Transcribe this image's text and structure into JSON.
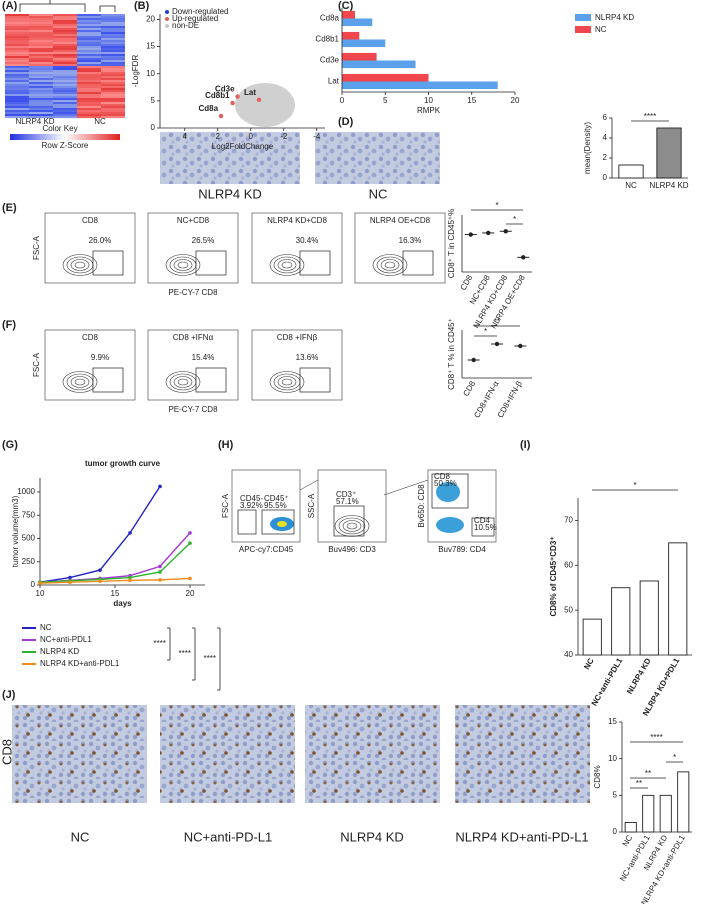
{
  "chart_data": [
    {
      "type": "scatter",
      "xlabel": "Log2FoldChange",
      "ylabel": "-LogFDR",
      "xlim": [
        5.5,
        -4.5
      ],
      "ylim": [
        0,
        21
      ],
      "xticks": [
        4,
        2,
        0,
        -2,
        -4
      ],
      "yticks": [
        0,
        5,
        10,
        15,
        20
      ],
      "labels": [
        "Cd8a",
        "Cd8b1",
        "Cd3e",
        "Lat"
      ],
      "x": [
        1.8,
        1.1,
        0.8,
        -0.5
      ],
      "y": [
        2.2,
        4.6,
        5.8,
        5.2
      ],
      "color": "#e0605a",
      "legend": [
        {
          "name": "Down-regulated",
          "color": "#1f3fd6"
        },
        {
          "name": "Up-regulated",
          "color": "#e0605a"
        },
        {
          "name": "non-DE",
          "color": "#c8c8c8"
        }
      ]
    },
    {
      "type": "hbar",
      "xlabel": "RMPK",
      "categories": [
        "Cd8a",
        "Cd8b1",
        "Cd3e",
        "Lat"
      ],
      "xlim": [
        0,
        20
      ],
      "xticks": [
        0,
        5,
        10,
        15,
        20
      ],
      "series": [
        {
          "name": "NLRP4 KD",
          "color": "#5aa0ea",
          "values": [
            3.5,
            5,
            8.5,
            18
          ]
        },
        {
          "name": "NC",
          "color": "#f0474e",
          "values": [
            1.5,
            2,
            4,
            10
          ]
        }
      ]
    },
    {
      "type": "bar",
      "ylabel": "mean(Density)",
      "categories": [
        "NC",
        "NLRP4 KD"
      ],
      "values": [
        1.3,
        5.0
      ],
      "colors": [
        "#ffffff",
        "#8c8c8c"
      ],
      "ylim": [
        0,
        6
      ],
      "yticks": [
        0,
        2,
        4,
        6
      ],
      "annotations": [
        "****"
      ]
    },
    {
      "type": "dot",
      "ylabel": "CD8⁺ T in CD45⁺%",
      "categories": [
        "CD8",
        "NC+CD8",
        "NLRP4 KD+CD8",
        "NLRP4 OE+CD8"
      ],
      "values": [
        23,
        24,
        25,
        9
      ],
      "ylim": [
        0,
        35
      ],
      "annotations": [
        "*",
        "*"
      ]
    },
    {
      "type": "dot",
      "ylabel": "CD8⁺ T % in CD45⁺",
      "categories": [
        "CD8",
        "CD8+IFN-α",
        "CD8+IFN-β"
      ],
      "values": [
        10.5,
        14.5,
        14
      ],
      "ylim": [
        6,
        18
      ],
      "annotations": [
        "**",
        "*"
      ]
    },
    {
      "type": "line",
      "title": "tumor growth curve",
      "xlabel": "days",
      "ylabel": "tumor volume(mm3)",
      "x": [
        10,
        12,
        14,
        16,
        18,
        20
      ],
      "xlim": [
        10,
        21
      ],
      "xticks": [
        10,
        15,
        20
      ],
      "ylim": [
        0,
        1150
      ],
      "yticks": [
        0,
        250,
        500,
        750,
        1000
      ],
      "series": [
        {
          "name": "NC",
          "color": "#2323c8",
          "values": [
            30,
            80,
            160,
            560,
            1060,
            null
          ]
        },
        {
          "name": "NC+anti-PDL1",
          "color": "#a23bd6",
          "values": [
            30,
            50,
            70,
            100,
            200,
            560
          ]
        },
        {
          "name": "NLRP4 KD",
          "color": "#2cb52c",
          "values": [
            30,
            45,
            60,
            80,
            140,
            450
          ]
        },
        {
          "name": "NLRP4 KD+anti-PDL1",
          "color": "#f08a1a",
          "values": [
            20,
            30,
            40,
            50,
            55,
            70
          ]
        }
      ],
      "annotations": [
        "****",
        "****",
        "****"
      ]
    },
    {
      "type": "bar",
      "ylabel": "CD8% of CD45⁺CD3⁺",
      "categories": [
        "NC",
        "NC+anti-PDL1",
        "NLRP4 KD",
        "NLRP4 KD+PDL1"
      ],
      "values": [
        48,
        55,
        56.5,
        65
      ],
      "color": "#ffffff",
      "ylim": [
        40,
        75
      ],
      "yticks": [
        40,
        50,
        60,
        70
      ],
      "annotations": [
        "*"
      ]
    },
    {
      "type": "bar",
      "ylabel": "CD8%",
      "categories": [
        "NC",
        "NC+anti-PDL1",
        "NLRP4 KD",
        "NLRP4 KD+anti-PDL1"
      ],
      "values": [
        1.3,
        5,
        5,
        8.2
      ],
      "color": "#ffffff",
      "ylim": [
        0,
        15
      ],
      "yticks": [
        0,
        5,
        10,
        15
      ],
      "annotations": [
        "**",
        "**",
        "*",
        "****"
      ]
    }
  ],
  "figure": {
    "panel_labels": [
      "(A)",
      "(B)",
      "(C)",
      "(D)",
      "(E)",
      "(F)",
      "(G)",
      "(H)",
      "(I)",
      "(J)"
    ],
    "heatmap": {
      "groups": [
        "NLRP4 KD",
        "NC"
      ],
      "key_title": "Color Key",
      "key_label": "Row Z-Score"
    },
    "d_images": [
      "NLRP4 KD",
      "NC"
    ],
    "e_flow": {
      "y_label": "FSC-A",
      "x_label": "PE-CY-7 CD8",
      "plots": [
        {
          "title": "CD8",
          "pct": "26.0%"
        },
        {
          "title": "NC+CD8",
          "pct": "26.5%"
        },
        {
          "title": "NLRP4 KD+CD8",
          "pct": "30.4%"
        },
        {
          "title": "NLRP4 OE+CD8",
          "pct": "16.3%"
        }
      ]
    },
    "f_flow": {
      "y_label": "FSC-A",
      "x_label": "PE-CY-7 CD8",
      "plots": [
        {
          "title": "CD8",
          "pct": "9.9%"
        },
        {
          "title": "CD8 +IFNα",
          "pct": "15.4%"
        },
        {
          "title": "CD8 +IFNβ",
          "pct": "13.6%"
        }
      ]
    },
    "h_gating": [
      {
        "y_label": "FSC-A",
        "x_label": "APC-cy7:CD45",
        "gates": [
          {
            "name": "CD45-",
            "pct": "3.92%"
          },
          {
            "name": "CD45⁺",
            "pct": "95.5%"
          }
        ]
      },
      {
        "y_label": "SSC-A",
        "x_label": "Buv496: CD3",
        "gates": [
          {
            "name": "CD3⁺",
            "pct": "57.1%"
          }
        ]
      },
      {
        "y_label": "Bv650: CD8",
        "x_label": "Buv789: CD4",
        "gates": [
          {
            "name": "CD8",
            "pct": "50.3%"
          },
          {
            "name": "CD4",
            "pct": "10.5%"
          }
        ]
      }
    ],
    "j_side_label": "CD8",
    "j_images": [
      "NC",
      "NC+anti-PD-L1",
      "NLRP4 KD",
      "NLRP4 KD+anti-PD-L1"
    ]
  }
}
